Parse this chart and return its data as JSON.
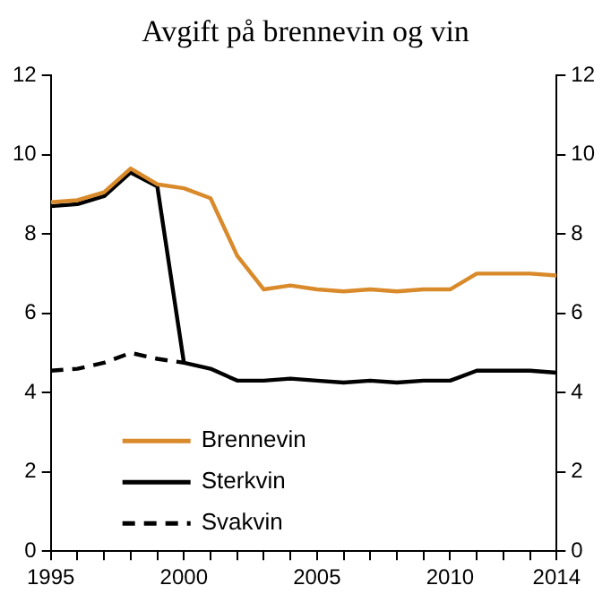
{
  "chart_data": {
    "type": "line",
    "title": "Avgift på brennevin og vin",
    "x": [
      1995,
      1996,
      1997,
      1998,
      1999,
      2000,
      2001,
      2002,
      2003,
      2004,
      2005,
      2006,
      2007,
      2008,
      2009,
      2010,
      2011,
      2012,
      2013,
      2014
    ],
    "series": [
      {
        "name": "Brennevin",
        "color": "#d98a2b",
        "values": [
          8.8,
          8.85,
          9.05,
          9.65,
          9.25,
          9.15,
          8.9,
          7.45,
          6.6,
          6.7,
          6.6,
          6.55,
          6.6,
          6.55,
          6.6,
          6.6,
          7.0,
          7.0,
          7.0,
          6.95
        ]
      },
      {
        "name": "Sterkvin",
        "color": "#000000",
        "values": [
          8.7,
          8.75,
          8.95,
          9.55,
          9.2,
          4.75,
          4.6,
          4.3,
          4.3,
          4.35,
          4.3,
          4.25,
          4.3,
          4.25,
          4.3,
          4.3,
          4.55,
          4.55,
          4.55,
          4.5
        ]
      },
      {
        "name": "Svakvin",
        "color": "#000000",
        "line_style": "dashed",
        "values": [
          4.55,
          4.6,
          4.75,
          5.0,
          4.85,
          4.75,
          null,
          null,
          null,
          null,
          null,
          null,
          null,
          null,
          null,
          null,
          null,
          null,
          null,
          null
        ]
      }
    ],
    "xlim": [
      1995,
      2014
    ],
    "xticks": [
      1995,
      {
        "value": 1996,
        "label": null
      },
      {
        "value": 1997,
        "label": null
      },
      {
        "value": 1998,
        "label": null
      },
      {
        "value": 1999,
        "label": null
      },
      2000,
      {
        "value": 2001,
        "label": null
      },
      {
        "value": 2002,
        "label": null
      },
      {
        "value": 2003,
        "label": null
      },
      {
        "value": 2004,
        "label": null
      },
      2005,
      {
        "value": 2006,
        "label": null
      },
      {
        "value": 2007,
        "label": null
      },
      {
        "value": 2008,
        "label": null
      },
      {
        "value": 2009,
        "label": null
      },
      2010,
      {
        "value": 2011,
        "label": null
      },
      {
        "value": 2012,
        "label": null
      },
      {
        "value": 2013,
        "label": null
      },
      2014
    ],
    "ylim": [
      0,
      12
    ],
    "yticks": [
      0,
      2,
      4,
      6,
      8,
      10,
      12
    ],
    "y2lim": [
      0,
      12
    ],
    "y2ticks": [
      0,
      2,
      4,
      6,
      8,
      10,
      12
    ],
    "grid": false,
    "legend": "bottom left",
    "marker": "none",
    "line_style": "solid"
  }
}
